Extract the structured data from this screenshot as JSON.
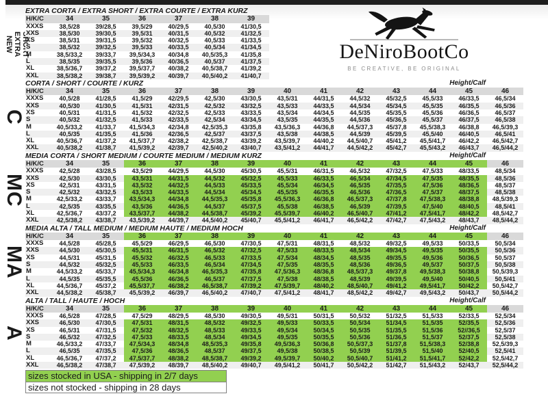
{
  "brand": {
    "name": "DeNiroBootCo",
    "tagline": "BE CREATIVE, BE ORIGINAL",
    "logo_icon": "horse-icon"
  },
  "sidebar": {
    "labels": [
      "NEW EXTRA SHORT",
      "C",
      "MC",
      "MA",
      "A"
    ]
  },
  "labels": {
    "corner": "H/K/C",
    "height_calf": "Height/Calf"
  },
  "colors": {
    "stocked_green": "#92d050",
    "header_gray": "#d9d9d9",
    "stripe_gray": "#efefef",
    "top_bar": "#1e1e1e"
  },
  "sections": [
    {
      "id": "extra-short",
      "title": "EXTRA CORTA / EXTRA SHORT / EXTRA COURTE / EXTRA KURZ",
      "height_calf": false,
      "green": null,
      "columns": [
        "34",
        "35",
        "36",
        "37",
        "38",
        "39"
      ],
      "rows": [
        {
          "label": "XXXS",
          "cells": [
            "38,5/28",
            "39/28,5",
            "39,5/29",
            "40/29,5",
            "40,5/30",
            "41/30,5"
          ]
        },
        {
          "label": "XXS",
          "cells": [
            "38,5/30",
            "39/30,5",
            "39,5/31",
            "40/31,5",
            "40,5/32",
            "41/32,5"
          ]
        },
        {
          "label": "XS",
          "cells": [
            "38,5/31",
            "39/31,5",
            "39,5/32",
            "40/32,5",
            "40,5/33",
            "41/33,5"
          ]
        },
        {
          "label": "S",
          "cells": [
            "38,5/32",
            "39/32,5",
            "39,5/33",
            "40/33,5",
            "40,5/34",
            "41/34,5"
          ]
        },
        {
          "label": "M",
          "cells": [
            "38,5/33,2",
            "39/33,7",
            "39,5/34,3",
            "40/34,8",
            "40,5/35,3",
            "41/35,8"
          ]
        },
        {
          "label": "L",
          "cells": [
            "38,5/35",
            "39/35,5",
            "39,5/36",
            "40/36,5",
            "40,5/37",
            "41/37,5"
          ]
        },
        {
          "label": "XL",
          "cells": [
            "38,5/36,7",
            "39/37,2",
            "39,5/37,7",
            "40/38,2",
            "40,5/38,7",
            "41/39,2"
          ]
        },
        {
          "label": "XXL",
          "cells": [
            "38,5/38,2",
            "39/38,7",
            "39,5/39,2",
            "40/39,7",
            "40,5/40,2",
            "41/40,7"
          ]
        }
      ]
    },
    {
      "id": "short",
      "title": "CORTA / SHORT / COURTE / KURZ",
      "height_calf": true,
      "green": null,
      "columns": [
        "34",
        "35",
        "36",
        "37",
        "38",
        "39",
        "40",
        "41",
        "42",
        "43",
        "44",
        "45",
        "46"
      ],
      "rows": [
        {
          "label": "XXXS",
          "cells": [
            "40,5/28",
            "41/28,5",
            "41,5/29",
            "42/29,5",
            "42,5/30",
            "43/30,5",
            "43,5/31",
            "44/31,5",
            "44,5/32",
            "45/32,5",
            "45,5/33",
            "46/33,5",
            "46,5/34"
          ]
        },
        {
          "label": "XXS",
          "cells": [
            "40,5/30",
            "41/30,5",
            "41,5/31",
            "42/31,5",
            "42,5/32",
            "43/32,5",
            "43,5/33",
            "44/33,5",
            "44,5/34",
            "45/34,5",
            "45,5/35",
            "46/35,5",
            "46,5/36"
          ]
        },
        {
          "label": "XS",
          "cells": [
            "40,5/31",
            "41/31,5",
            "41,5/32",
            "42/32,5",
            "42,5/33",
            "43/33,5",
            "43,5/34",
            "44/34,5",
            "44,5/35",
            "45/35,5",
            "45,5/36",
            "46/36,5",
            "46,5/37"
          ]
        },
        {
          "label": "S",
          "cells": [
            "40,5/32",
            "41/32,5",
            "41,5/33",
            "42/33,5",
            "42,5/34",
            "43/34,5",
            "43,5/35",
            "44/35,5",
            "44,5/36",
            "45/36,5",
            "45,5/37",
            "46/37,5",
            "46,5/38"
          ]
        },
        {
          "label": "M",
          "cells": [
            "40,5/33,2",
            "41/33,7",
            "41,5/34,3",
            "42/34,8",
            "42,5/35,3",
            "43/35,8",
            "43,5/36,3",
            "44/36,8",
            "44,5/37,3",
            "45/37,8",
            "45,5/38,3",
            "46/38,8",
            "46,5/39,3"
          ]
        },
        {
          "label": "L",
          "cells": [
            "40,5/35",
            "41/35,5",
            "41,5/36",
            "42/36,5",
            "42,5/37",
            "43/37,5",
            "43,5/38",
            "44/38,5",
            "44,5/39",
            "45/39,5",
            "45,5/40",
            "46/40,5",
            "46,5/41"
          ]
        },
        {
          "label": "XL",
          "cells": [
            "40,5/36,7",
            "41/37,2",
            "41,5/37,7",
            "42/38,2",
            "42,5/38,7",
            "43/39,2",
            "43,5/39,7",
            "44/40,2",
            "44,5/40,7",
            "45/41,2",
            "45,5/41,7",
            "46/42,2",
            "46,5/42,7"
          ]
        },
        {
          "label": "XXL",
          "cells": [
            "40,5/38,2",
            "41/38,7",
            "41,5/39,2",
            "42/39,7",
            "42,5/40,2",
            "43/40,7",
            "43,5/41,2",
            "44/41,7",
            "44,5/42,2",
            "45/42,7",
            "45,5/43,2",
            "46/43,7",
            "46,5/44,2"
          ]
        }
      ]
    },
    {
      "id": "short-medium",
      "title": "MEDIA CORTA / SHORT MEDIUM / COURTE MEDIUM / MEDIUM KURZ",
      "height_calf": true,
      "green": {
        "rows": [
          1,
          6
        ],
        "cols": [
          2,
          11
        ]
      },
      "columns": [
        "34",
        "35",
        "36",
        "37",
        "38",
        "39",
        "40",
        "41",
        "42",
        "43",
        "44",
        "45",
        "46"
      ],
      "rows": [
        {
          "label": "XXXS",
          "cells": [
            "42,5/28",
            "43/28,5",
            "43,5/29",
            "44/29,5",
            "44,5/30",
            "45/30,5",
            "45,5/31",
            "46/31,5",
            "46,5/32",
            "47/32,5",
            "47,5/33",
            "48/33,5",
            "48,5/34"
          ]
        },
        {
          "label": "XXS",
          "cells": [
            "42,5/30",
            "43/30,5",
            "43,5/31",
            "44/31,5",
            "44,5/32",
            "45/32,5",
            "45,5/33",
            "46/33,5",
            "46,5/34",
            "47/34,5",
            "47,5/35",
            "48/35,5",
            "48,5/36"
          ]
        },
        {
          "label": "XS",
          "cells": [
            "42,5/31",
            "43/31,5",
            "43,5/32",
            "44/32,5",
            "44,5/33",
            "45/33,5",
            "45,5/34",
            "46/34,5",
            "46,5/35",
            "47/35,5",
            "47,5/36",
            "48/36,5",
            "48,5/37"
          ]
        },
        {
          "label": "S",
          "cells": [
            "42,5/32",
            "43/32,5",
            "43,5/33",
            "44/33,5",
            "44,5/34",
            "45/34,5",
            "45,5/35",
            "46/35,5",
            "46,5/36",
            "47/36,5",
            "47,5/37",
            "48/37,5",
            "48,5/38"
          ]
        },
        {
          "label": "M",
          "cells": [
            "42,5/33,2",
            "43/33,7",
            "43,5/34,3",
            "44/34,8",
            "44,5/35,3",
            "45/35,8",
            "45,5/36,3",
            "46/36,8",
            "46,5/37,3",
            "47/37,8",
            "47,5/38,3",
            "48/38,8",
            "48,5/39,3"
          ]
        },
        {
          "label": "L",
          "cells": [
            "42,5/35",
            "43/35,5",
            "43,5/36",
            "44/36,5",
            "44,5/37",
            "45/37,5",
            "45,5/38",
            "46/38,5",
            "46,5/39",
            "47/39,5",
            "47,5/40",
            "48/40,5",
            "48,5/41"
          ]
        },
        {
          "label": "XL",
          "cells": [
            "42,5/36,7",
            "43/37,2",
            "43,5/37,7",
            "44/38,2",
            "44,5/38,7",
            "45/39,2",
            "45,5/39,7",
            "46/40,2",
            "46,5/40,7",
            "47/41,2",
            "47,5/41,7",
            "48/42,2",
            "48,5/42,7"
          ]
        },
        {
          "label": "XXL",
          "cells": [
            "42,5/38,2",
            "43/38,7",
            "43,5/39,2",
            "44/39,7",
            "44,5/40,2",
            "45/40,7",
            "45,5/41,2",
            "46/41,7",
            "46,5/42,2",
            "47/42,7",
            "47,5/43,2",
            "48/43,7",
            "48,5/44,2"
          ]
        }
      ]
    },
    {
      "id": "tall-medium",
      "title": "MEDIA ALTA / TALL MEDIUM / MEDIUM HAUTE / MEDIUM HOCH",
      "height_calf": true,
      "green": {
        "rows": [
          1,
          6
        ],
        "cols": [
          2,
          11
        ]
      },
      "columns": [
        "34",
        "35",
        "36",
        "37",
        "38",
        "39",
        "40",
        "41",
        "42",
        "43",
        "44",
        "45",
        "46"
      ],
      "rows": [
        {
          "label": "XXXS",
          "cells": [
            "44,5/28",
            "45/28,5",
            "45,5/29",
            "46/29,5",
            "46,5/30",
            "47/30,5",
            "47,5/31",
            "48/31,5",
            "48,5/32",
            "49/32,5",
            "49,5/33",
            "50/33,5",
            "50,5/34"
          ]
        },
        {
          "label": "XXS",
          "cells": [
            "44,5/30",
            "45/30,5",
            "45,5/31",
            "46/31,5",
            "46,5/32",
            "47/32,5",
            "47,5/33",
            "48/33,5",
            "48,5/34",
            "49/34,5",
            "49,5/35",
            "50/35,5",
            "50,5/36"
          ]
        },
        {
          "label": "XS",
          "cells": [
            "44,5/31",
            "45/31,5",
            "45,5/32",
            "46/32,5",
            "46,5/33",
            "47/33,5",
            "47,5/34",
            "48/34,5",
            "48,5/35",
            "49/35,5",
            "49,5/36",
            "50/36,5",
            "50,5/37"
          ]
        },
        {
          "label": "S",
          "cells": [
            "44,5/32",
            "45/32,5",
            "45,5/33",
            "46/33,5",
            "46,5/34",
            "47/34,5",
            "47,5/35",
            "48/35,5",
            "48,5/36",
            "49/36,5",
            "49,5/37",
            "50/37,5",
            "50,5/38"
          ]
        },
        {
          "label": "M",
          "cells": [
            "44,5/33,2",
            "45/33,7",
            "45,5/34,3",
            "46/34,8",
            "46,5/35,3",
            "47/35,8",
            "47,5/36,3",
            "48/36,8",
            "48,5/37,3",
            "49/37,8",
            "49,5/38,3",
            "50/38,8",
            "50,5/39,3"
          ]
        },
        {
          "label": "L",
          "cells": [
            "44,5/35",
            "45/35,5",
            "45,5/36",
            "46/36,5",
            "46,5/37",
            "47/37,5",
            "47,5/38",
            "48/38,5",
            "48,5/39",
            "49/39,5",
            "49,5/40",
            "50/40,5",
            "50,5/41"
          ]
        },
        {
          "label": "XL",
          "cells": [
            "44,5/36,7",
            "45/37,2",
            "45,5/37,7",
            "46/38,2",
            "46,5/38,7",
            "47/39,2",
            "47,5/39,7",
            "48/40,2",
            "48,5/40,7",
            "49/41,2",
            "49,5/41,7",
            "50/42,2",
            "50,5/42,7"
          ]
        },
        {
          "label": "XXL",
          "cells": [
            "44,5/38,2",
            "45/38,7",
            "45,5/39,2",
            "46/39,7",
            "46,5/40,2",
            "47/40,7",
            "47,5/41,2",
            "48/41,7",
            "48,5/42,2",
            "49/42,7",
            "49,5/43,2",
            "50/43,7",
            "50,5/44,2"
          ]
        }
      ]
    },
    {
      "id": "tall",
      "title": "ALTA / TALL / HAUTE / HOCH",
      "height_calf": true,
      "green": {
        "rows": [
          1,
          6
        ],
        "cols": [
          2,
          11
        ]
      },
      "columns": [
        "34",
        "35",
        "36",
        "37",
        "38",
        "39",
        "40",
        "41",
        "42",
        "43",
        "44",
        "45",
        "46"
      ],
      "rows": [
        {
          "label": "XXXS",
          "cells": [
            "46,5/28",
            "47/28,5",
            "47,5/29",
            "48/29,5",
            "48,5/30",
            "49/30,5",
            "49,5/31",
            "50/31,5",
            "50,5/32",
            "51/32,5",
            "51,5/33",
            "52/33,5",
            "52,5/34"
          ]
        },
        {
          "label": "XXS",
          "cells": [
            "46,5/30",
            "47/30,5",
            "47,5/31",
            "48/31,5",
            "48,5/32",
            "49/32,5",
            "49,5/33",
            "50/33,5",
            "50,5/34",
            "51/34,5",
            "51,5/35",
            "52/35,5",
            "52,5/36"
          ]
        },
        {
          "label": "XS",
          "cells": [
            "46,5/31",
            "47/31,5",
            "47,5/32",
            "48/32,5",
            "48,5/33",
            "49/33,5",
            "49,5/34",
            "50/34,5",
            "50,5/35",
            "51/35,5",
            "51,5/36",
            "52//36,5",
            "52,5/37"
          ]
        },
        {
          "label": "S",
          "cells": [
            "46,5/32",
            "47/32,5",
            "47,5/33",
            "48/33,5",
            "48,5/34",
            "49/34,5",
            "49,5/35",
            "50/35,5",
            "50,5/36",
            "51/36,5",
            "51,5/37",
            "52/37,5",
            "52,5/38"
          ]
        },
        {
          "label": "M",
          "cells": [
            "46,5/33,2",
            "47/33,7",
            "47,5/34,3",
            "48/34,8",
            "48,5/35,3",
            "49/35,8",
            "49,5/36,3",
            "50/36,8",
            "50,5/37,3",
            "51/37,8",
            "51,5/38,3",
            "52/38,8",
            "52,5/39,3"
          ]
        },
        {
          "label": "L",
          "cells": [
            "46,5/35",
            "47/35,5",
            "47,5/36",
            "48/36,5",
            "48,5/37",
            "49/37,5",
            "49,5/38",
            "50/38,5",
            "50,5/39",
            "51/39,5",
            "51,5/40",
            "52/40,5",
            "52,5/41"
          ]
        },
        {
          "label": "XL",
          "cells": [
            "46,5/36,7",
            "47/37,2",
            "47,5/37,7",
            "48/38,2",
            "48,5/38,7",
            "49/39,2",
            "49,5/39,7",
            "50/40,2",
            "50,5/40,7",
            "51/41,2",
            "51,5/41,7",
            "52/42,2",
            "52,5/42,7"
          ]
        },
        {
          "label": "XXL",
          "cells": [
            "46,5/38,2",
            "47/38,7",
            "47,5/39,2",
            "48/39,7",
            "48,5/40,2",
            "49/40,7",
            "49,5/41,2",
            "50/41,7",
            "50,5/42,2",
            "51/42,7",
            "51,5/43,2",
            "52/43,7",
            "52,5/44,2"
          ]
        }
      ]
    }
  ],
  "legend": [
    {
      "text": "sizes stocked in USA - shipping in 2/7 days",
      "style": "stocked"
    },
    {
      "text": "sizes not stocked - shipping in 28 days",
      "style": "not-stocked"
    }
  ]
}
